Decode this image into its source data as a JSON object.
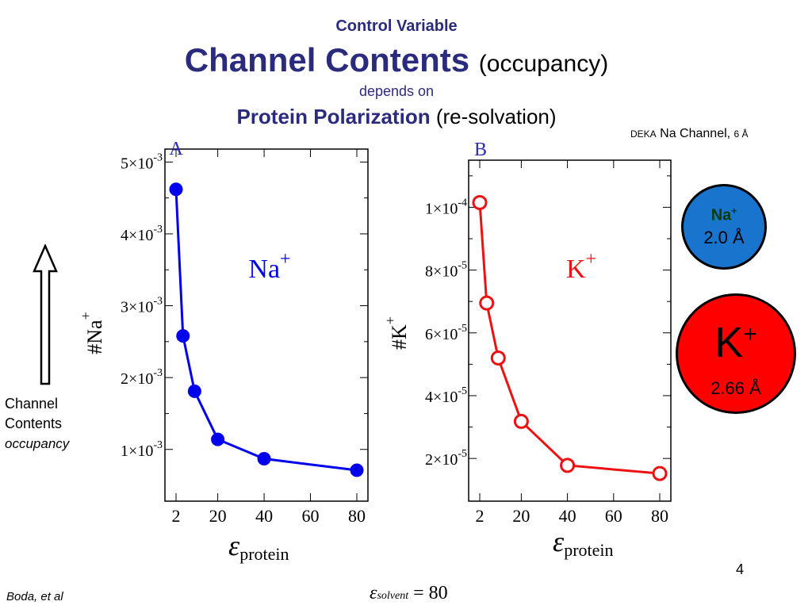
{
  "header": {
    "control_label": "Control Variable",
    "title_main": "Channel Contents",
    "title_paren": "(occupancy)",
    "depends_on": "depends on",
    "driver_main": "Protein Polarization",
    "driver_paren": "(re-solvation)"
  },
  "deka": {
    "prefix": "DEKA",
    "text": "Na Channel,",
    "size": "6 Å"
  },
  "side_label": {
    "line1": "Channel",
    "line2": "Contents",
    "line3": "occupancy"
  },
  "ions": {
    "na": {
      "symbol": "Na",
      "charge": "+",
      "radius": "2.0 Å",
      "color": "#1874cd"
    },
    "k": {
      "symbol": "K",
      "charge": "+",
      "radius": "2.66 Å",
      "color": "#ff0000"
    }
  },
  "footer": {
    "page_number": "4",
    "author": "Boda, et al",
    "solvent_symbol": "ε",
    "solvent_sub": "solvent",
    "solvent_value": "= 80"
  },
  "chart_data": [
    {
      "type": "line",
      "panel_label": "A",
      "series_annotation": "Na",
      "series_annotation_sup": "+",
      "ylabel": "#Na",
      "ylabel_sup": "+",
      "xlabel_symbol": "ε",
      "xlabel_sub": "protein",
      "color": "#0000ee",
      "x_scale": "reciprocal",
      "xlim": [
        2,
        80
      ],
      "ylim": [
        0.00028,
        0.00518
      ],
      "x_ticks": [
        "2",
        "20",
        "40",
        "60",
        "80"
      ],
      "y_ticks": [
        {
          "mant": "1",
          "exp": "-3",
          "value": 0.001
        },
        {
          "mant": "2",
          "exp": "-3",
          "value": 0.002
        },
        {
          "mant": "3",
          "exp": "-3",
          "value": 0.003
        },
        {
          "mant": "4",
          "exp": "-3",
          "value": 0.004
        },
        {
          "mant": "5",
          "exp": "-3",
          "value": 0.005
        }
      ],
      "marker": "filled-circle",
      "x": [
        2,
        5,
        10,
        20,
        40,
        80
      ],
      "y": [
        0.00462,
        0.00258,
        0.00181,
        0.00114,
        0.00087,
        0.00071
      ]
    },
    {
      "type": "line",
      "panel_label": "B",
      "series_annotation": "K",
      "series_annotation_sup": "+",
      "ylabel": "#K",
      "ylabel_sup": "+",
      "xlabel_symbol": "ε",
      "xlabel_sub": "protein",
      "color": "#ee1111",
      "x_scale": "reciprocal",
      "xlim": [
        2,
        80
      ],
      "ylim": [
        6.4e-06,
        0.000115
      ],
      "x_ticks": [
        "2",
        "20",
        "40",
        "60",
        "80"
      ],
      "y_ticks": [
        {
          "mant": "2",
          "exp": "-5",
          "value": 2e-05
        },
        {
          "mant": "4",
          "exp": "-5",
          "value": 4e-05
        },
        {
          "mant": "6",
          "exp": "-5",
          "value": 6e-05
        },
        {
          "mant": "8",
          "exp": "-5",
          "value": 8e-05
        },
        {
          "mant": "1",
          "exp": "-4",
          "value": 0.0001
        }
      ],
      "marker": "open-circle",
      "x": [
        2,
        5,
        10,
        20,
        40,
        80
      ],
      "y": [
        0.0001015,
        6.95e-05,
        5.2e-05,
        3.18e-05,
        1.78e-05,
        1.52e-05
      ]
    }
  ]
}
